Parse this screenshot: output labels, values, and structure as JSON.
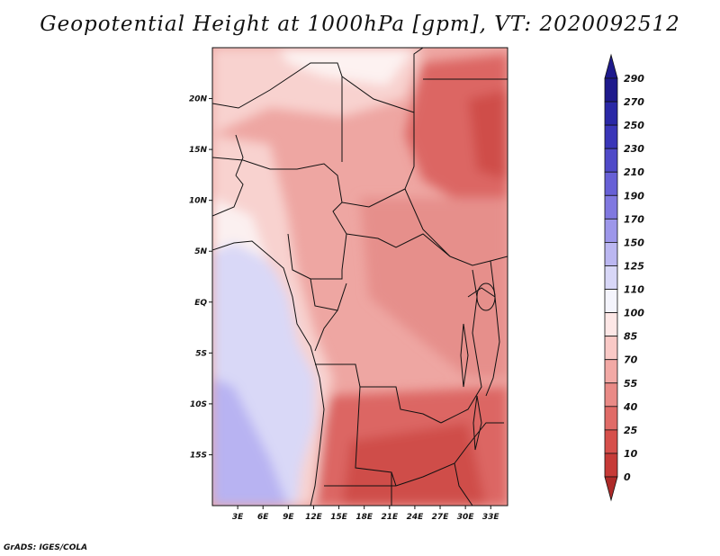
{
  "title": "Geopotential Height at 1000hPa [gpm], VT: 2020092512",
  "credit": "GrADS: IGES/COLA",
  "map": {
    "lon_range": [
      0,
      35
    ],
    "lat_range": [
      -20,
      25
    ],
    "x_ticks": [
      {
        "lon": 3,
        "label": "3E"
      },
      {
        "lon": 6,
        "label": "6E"
      },
      {
        "lon": 9,
        "label": "9E"
      },
      {
        "lon": 12,
        "label": "12E"
      },
      {
        "lon": 15,
        "label": "15E"
      },
      {
        "lon": 18,
        "label": "18E"
      },
      {
        "lon": 21,
        "label": "21E"
      },
      {
        "lon": 24,
        "label": "24E"
      },
      {
        "lon": 27,
        "label": "27E"
      },
      {
        "lon": 30,
        "label": "30E"
      },
      {
        "lon": 33,
        "label": "33E"
      }
    ],
    "y_ticks": [
      {
        "lat": 20,
        "label": "20N"
      },
      {
        "lat": 15,
        "label": "15N"
      },
      {
        "lat": 10,
        "label": "10N"
      },
      {
        "lat": 5,
        "label": "5N"
      },
      {
        "lat": 0,
        "label": "EQ"
      },
      {
        "lat": -5,
        "label": "5S"
      },
      {
        "lat": -10,
        "label": "10S"
      },
      {
        "lat": -15,
        "label": "15S"
      }
    ]
  },
  "colorbar": {
    "levels": [
      {
        "label": "290",
        "color": "#1e1a8c"
      },
      {
        "label": "270",
        "color": "#2a28a6"
      },
      {
        "label": "250",
        "color": "#3a36b8"
      },
      {
        "label": "230",
        "color": "#4f4ac8"
      },
      {
        "label": "210",
        "color": "#6760d6"
      },
      {
        "label": "190",
        "color": "#8078e0"
      },
      {
        "label": "170",
        "color": "#9d97ea"
      },
      {
        "label": "150",
        "color": "#bbb7f1"
      },
      {
        "label": "125",
        "color": "#d8d7f7"
      },
      {
        "label": "110",
        "color": "#f4f4fc"
      },
      {
        "label": "100",
        "color": "#fde7e6"
      },
      {
        "label": "85",
        "color": "#f9c9c6"
      },
      {
        "label": "70",
        "color": "#f2a9a5"
      },
      {
        "label": "55",
        "color": "#e98a86"
      },
      {
        "label": "40",
        "color": "#e06b67"
      },
      {
        "label": "25",
        "color": "#d64f4b"
      },
      {
        "label": "10",
        "color": "#c63a37"
      },
      {
        "label": "0",
        "color": "#ad2a28"
      }
    ],
    "top_color": "#1e1a8c",
    "bottom_color": "#ad2a28"
  },
  "field_colors": {
    "ocean_far": "#b8b3f2",
    "ocean_near": "#d9d8f7",
    "coast": "#fbf0f0",
    "light": "#f8d2cf",
    "mid": "#eea6a2",
    "mid2": "#e68f8b",
    "deep": "#dc6663",
    "deeper": "#cf4d4a"
  }
}
